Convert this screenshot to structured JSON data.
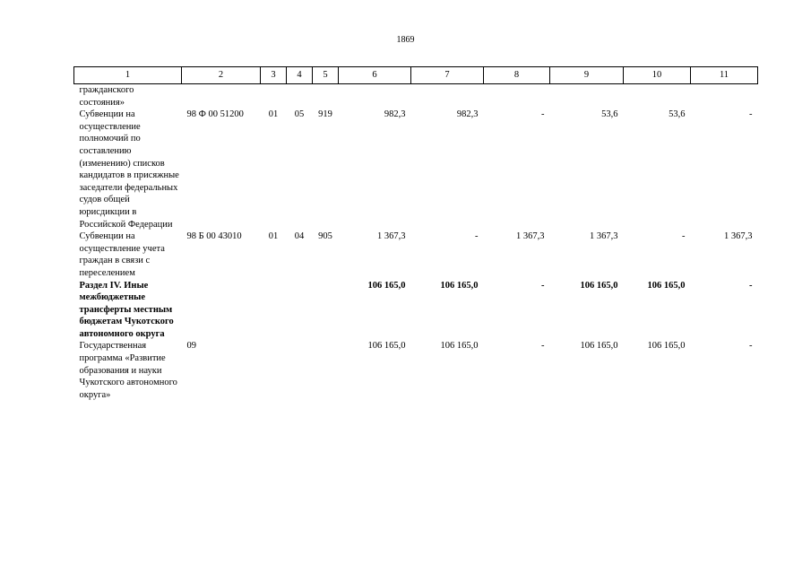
{
  "page_number": "1869",
  "columns": [
    "1",
    "2",
    "3",
    "4",
    "5",
    "6",
    "7",
    "8",
    "9",
    "10",
    "11"
  ],
  "rows": [
    {
      "name": "гражданского состояния»",
      "code": "",
      "c3": "",
      "c4": "",
      "c5": "",
      "v6": "",
      "v7": "",
      "v8": "",
      "v9": "",
      "v10": "",
      "v11": "",
      "bold": false
    },
    {
      "name": "Субвенции на осуществление полномочий по составлению (изменению) списков кандидатов в присяжные заседатели федеральных судов общей юрисдикции в Российской Федерации",
      "code": "98 Ф 00 51200",
      "c3": "01",
      "c4": "05",
      "c5": "919",
      "v6": "982,3",
      "v7": "982,3",
      "v8": "-",
      "v9": "53,6",
      "v10": "53,6",
      "v11": "-",
      "bold": false
    },
    {
      "name": "Субвенции на осуществление учета граждан в связи с переселением",
      "code": "98 Б 00 43010",
      "c3": "01",
      "c4": "04",
      "c5": "905",
      "v6": "1 367,3",
      "v7": "-",
      "v8": "1 367,3",
      "v9": "1 367,3",
      "v10": "-",
      "v11": "1 367,3",
      "bold": false
    },
    {
      "name": "Раздел IV. Иные межбюджетные трансферты местным бюджетам Чукотского автономного округа",
      "code": "",
      "c3": "",
      "c4": "",
      "c5": "",
      "v6": "106 165,0",
      "v7": "106 165,0",
      "v8": "-",
      "v9": "106 165,0",
      "v10": "106 165,0",
      "v11": "-",
      "bold": true
    },
    {
      "name": "Государственная программа «Развитие образования и науки Чукотского автономного округа»",
      "code": "09",
      "c3": "",
      "c4": "",
      "c5": "",
      "v6": "106 165,0",
      "v7": "106 165,0",
      "v8": "-",
      "v9": "106 165,0",
      "v10": "106 165,0",
      "v11": "-",
      "bold": false
    }
  ]
}
